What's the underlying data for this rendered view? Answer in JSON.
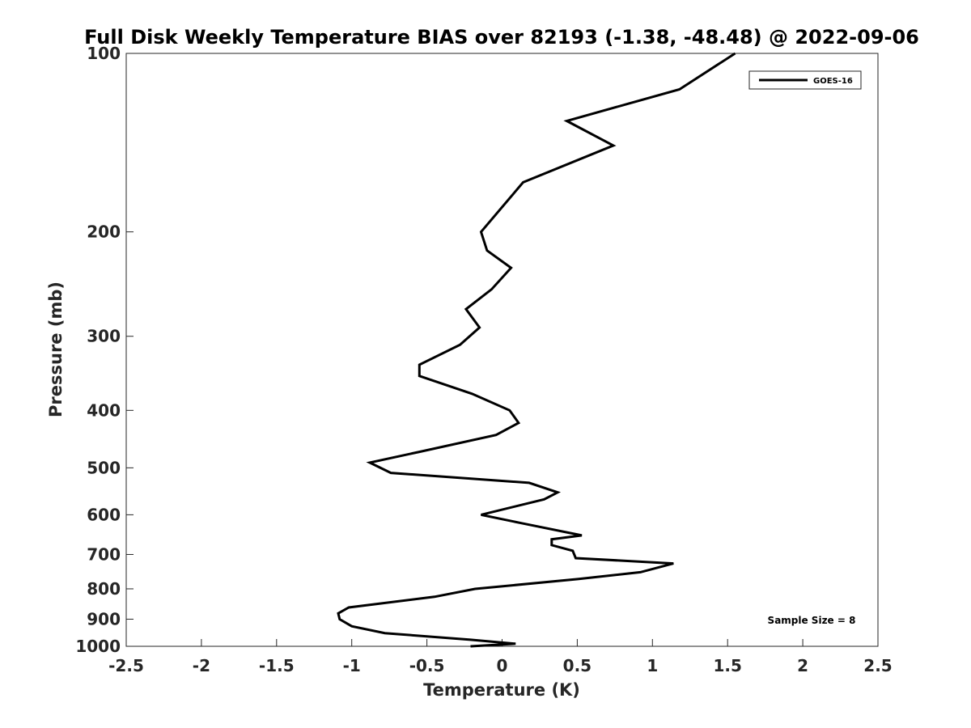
{
  "chart_data": {
    "type": "line",
    "title": "Full Disk Weekly Temperature BIAS over 82193 (-1.38, -48.48) @ 2022-09-06",
    "xlabel": "Temperature (K)",
    "ylabel": "Pressure (mb)",
    "xlim": [
      -2.5,
      2.5
    ],
    "ylim": [
      1000,
      100
    ],
    "yscale": "log",
    "y_reversed": true,
    "x_ticks": [
      "-2.5",
      "-2",
      "-1.5",
      "-1",
      "-0.5",
      "0",
      "0.5",
      "1",
      "1.5",
      "2",
      "2.5"
    ],
    "x_tick_values": [
      -2.5,
      -2,
      -1.5,
      -1,
      -0.5,
      0,
      0.5,
      1,
      1.5,
      2,
      2.5
    ],
    "y_ticks": [
      "100",
      "200",
      "300",
      "400",
      "500",
      "600",
      "700",
      "800",
      "900",
      "1000"
    ],
    "y_tick_values": [
      100,
      200,
      300,
      400,
      500,
      600,
      700,
      800,
      900,
      1000
    ],
    "grid": false,
    "legend_position": "top-right",
    "series": [
      {
        "name": "GOES-16",
        "color": "#000000",
        "points": [
          [
            1.55,
            100
          ],
          [
            1.18,
            115
          ],
          [
            0.43,
            130
          ],
          [
            0.74,
            143
          ],
          [
            0.14,
            165
          ],
          [
            -0.14,
            200
          ],
          [
            -0.1,
            215
          ],
          [
            0.06,
            230
          ],
          [
            -0.07,
            250
          ],
          [
            -0.24,
            270
          ],
          [
            -0.15,
            290
          ],
          [
            -0.28,
            310
          ],
          [
            -0.55,
            335
          ],
          [
            -0.55,
            350
          ],
          [
            -0.2,
            375
          ],
          [
            0.05,
            400
          ],
          [
            0.11,
            420
          ],
          [
            -0.04,
            440
          ],
          [
            -0.55,
            470
          ],
          [
            -0.88,
            490
          ],
          [
            -0.74,
            510
          ],
          [
            0.18,
            530
          ],
          [
            0.37,
            550
          ],
          [
            0.28,
            565
          ],
          [
            -0.14,
            600
          ],
          [
            0.13,
            620
          ],
          [
            0.53,
            650
          ],
          [
            0.33,
            660
          ],
          [
            0.33,
            675
          ],
          [
            0.47,
            690
          ],
          [
            0.49,
            710
          ],
          [
            1.14,
            725
          ],
          [
            0.92,
            750
          ],
          [
            0.51,
            770
          ],
          [
            -0.18,
            800
          ],
          [
            -0.45,
            825
          ],
          [
            -1.02,
            860
          ],
          [
            -1.09,
            880
          ],
          [
            -1.08,
            900
          ],
          [
            -1.0,
            925
          ],
          [
            -0.78,
            950
          ],
          [
            -0.21,
            975
          ],
          [
            0.09,
            990
          ],
          [
            -0.21,
            1000
          ]
        ]
      }
    ],
    "annotations": [
      "Sample Size = 8"
    ]
  }
}
